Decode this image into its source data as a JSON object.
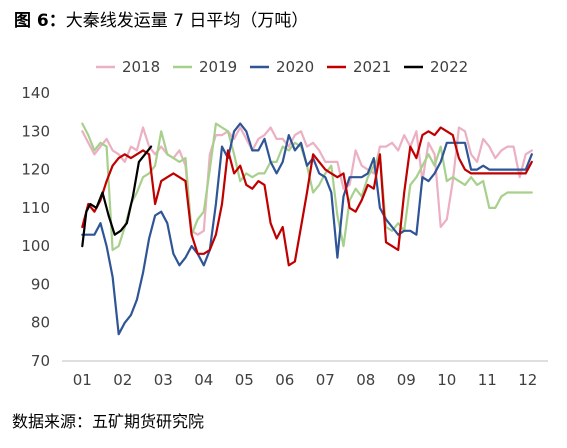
{
  "title": {
    "label": "图 6：",
    "text": "大秦线发运量 7 日平均（万吨）"
  },
  "source": "数据来源：五矿期货研究院",
  "chart_data": {
    "type": "line",
    "x_tick_labels": [
      "01",
      "02",
      "03",
      "04",
      "05",
      "06",
      "07",
      "08",
      "09",
      "10",
      "11",
      "12"
    ],
    "ylim": [
      70,
      140
    ],
    "y_ticks": [
      70,
      80,
      90,
      100,
      110,
      120,
      130,
      140
    ],
    "grid": false,
    "legend_position": "top",
    "series": [
      {
        "name": "2018",
        "color": "#ebb0c2",
        "x": [
          1.0,
          1.15,
          1.3,
          1.45,
          1.6,
          1.75,
          1.9,
          2.05,
          2.2,
          2.35,
          2.5,
          2.65,
          2.8,
          2.95,
          3.1,
          3.25,
          3.4,
          3.55,
          3.7,
          3.85,
          4.0,
          4.15,
          4.3,
          4.45,
          4.6,
          4.75,
          4.9,
          5.05,
          5.2,
          5.35,
          5.5,
          5.65,
          5.8,
          5.95,
          6.1,
          6.25,
          6.4,
          6.55,
          6.7,
          6.85,
          7.0,
          7.15,
          7.3,
          7.45,
          7.6,
          7.75,
          7.9,
          8.05,
          8.2,
          8.35,
          8.5,
          8.65,
          8.8,
          8.95,
          9.1,
          9.25,
          9.4,
          9.55,
          9.7,
          9.85,
          10.0,
          10.15,
          10.3,
          10.45,
          10.6,
          10.75,
          10.9,
          11.05,
          11.2,
          11.35,
          11.5,
          11.65,
          11.8,
          11.95,
          12.1
        ],
        "values": [
          130,
          127,
          124,
          126,
          128,
          125,
          124,
          122,
          126,
          125,
          131,
          126,
          124,
          126,
          124,
          123,
          125,
          121,
          104,
          103,
          104,
          124,
          129,
          129,
          130,
          128,
          131,
          128,
          125,
          128,
          129,
          131,
          128,
          128,
          126,
          129,
          130,
          126,
          127,
          125,
          122,
          122,
          122,
          115,
          116,
          125,
          121,
          120,
          119,
          126,
          126,
          127,
          125,
          129,
          126,
          130,
          117,
          127,
          124,
          105,
          107,
          117,
          131,
          130,
          124,
          122,
          128,
          126,
          123,
          125,
          126,
          126,
          118,
          124,
          125
        ]
      },
      {
        "name": "2019",
        "color": "#a8d08d",
        "x": [
          1.0,
          1.15,
          1.3,
          1.45,
          1.6,
          1.75,
          1.9,
          2.05,
          2.2,
          2.35,
          2.5,
          2.65,
          2.8,
          2.95,
          3.1,
          3.25,
          3.4,
          3.55,
          3.7,
          3.85,
          4.0,
          4.15,
          4.3,
          4.45,
          4.6,
          4.75,
          4.9,
          5.05,
          5.2,
          5.35,
          5.5,
          5.65,
          5.8,
          5.95,
          6.1,
          6.25,
          6.4,
          6.55,
          6.7,
          6.85,
          7.0,
          7.15,
          7.3,
          7.45,
          7.6,
          7.75,
          7.9,
          8.05,
          8.2,
          8.35,
          8.5,
          8.65,
          8.8,
          8.95,
          9.1,
          9.25,
          9.4,
          9.55,
          9.7,
          9.85,
          10.0,
          10.15,
          10.3,
          10.45,
          10.6,
          10.75,
          10.9,
          11.05,
          11.2,
          11.35,
          11.5,
          11.65,
          11.8,
          11.95,
          12.1
        ],
        "values": [
          132,
          129,
          125,
          127,
          126,
          99,
          100,
          105,
          111,
          114,
          118,
          119,
          121,
          130,
          124,
          123,
          122,
          123,
          103,
          107,
          109,
          120,
          132,
          131,
          130,
          124,
          117,
          119,
          118,
          119,
          119,
          122,
          122,
          126,
          125,
          127,
          126,
          121,
          114,
          116,
          119,
          121,
          108,
          100,
          112,
          115,
          113,
          118,
          121,
          124,
          105,
          104,
          106,
          104,
          116,
          118,
          121,
          124,
          121,
          126,
          117,
          118,
          117,
          116,
          118,
          116,
          117,
          110,
          110,
          113,
          114,
          114,
          114,
          114,
          114
        ]
      },
      {
        "name": "2020",
        "color": "#2f5597",
        "x": [
          1.0,
          1.15,
          1.3,
          1.45,
          1.6,
          1.75,
          1.9,
          2.05,
          2.2,
          2.35,
          2.5,
          2.65,
          2.8,
          2.95,
          3.1,
          3.25,
          3.4,
          3.55,
          3.7,
          3.85,
          4.0,
          4.15,
          4.3,
          4.45,
          4.6,
          4.75,
          4.9,
          5.05,
          5.2,
          5.35,
          5.5,
          5.65,
          5.8,
          5.95,
          6.1,
          6.25,
          6.4,
          6.55,
          6.7,
          6.85,
          7.0,
          7.15,
          7.3,
          7.45,
          7.6,
          7.75,
          7.9,
          8.05,
          8.2,
          8.35,
          8.5,
          8.65,
          8.8,
          8.95,
          9.1,
          9.25,
          9.4,
          9.55,
          9.7,
          9.85,
          10.0,
          10.15,
          10.3,
          10.45,
          10.6,
          10.75,
          10.9,
          11.05,
          11.2,
          11.35,
          11.5,
          11.65,
          11.8,
          11.95,
          12.1
        ],
        "values": [
          103,
          103,
          103,
          106,
          100,
          92,
          77,
          80,
          82,
          86,
          93,
          102,
          108,
          109,
          106,
          98,
          95,
          97,
          100,
          98,
          95,
          99,
          111,
          126,
          123,
          130,
          132,
          130,
          125,
          125,
          128,
          122,
          119,
          122,
          129,
          125,
          127,
          121,
          123,
          119,
          118,
          114,
          97,
          113,
          118,
          118,
          118,
          119,
          123,
          110,
          107,
          105,
          103,
          104,
          104,
          103,
          118,
          117,
          119,
          122,
          127,
          127,
          127,
          127,
          120,
          120,
          121,
          120,
          120,
          120,
          120,
          120,
          120,
          120,
          124
        ]
      },
      {
        "name": "2021",
        "color": "#c00000",
        "x": [
          1.0,
          1.15,
          1.3,
          1.45,
          1.6,
          1.75,
          1.9,
          2.05,
          2.2,
          2.35,
          2.5,
          2.65,
          2.8,
          2.95,
          3.1,
          3.25,
          3.4,
          3.55,
          3.7,
          3.85,
          4.0,
          4.15,
          4.3,
          4.45,
          4.6,
          4.75,
          4.9,
          5.05,
          5.2,
          5.35,
          5.5,
          5.65,
          5.8,
          5.95,
          6.1,
          6.25,
          6.4,
          6.55,
          6.7,
          6.85,
          7.0,
          7.15,
          7.3,
          7.45,
          7.6,
          7.75,
          7.9,
          8.05,
          8.2,
          8.35,
          8.5,
          8.65,
          8.8,
          8.95,
          9.1,
          9.25,
          9.4,
          9.55,
          9.7,
          9.85,
          10.0,
          10.15,
          10.3,
          10.45,
          10.6,
          10.75,
          10.9,
          11.05,
          11.2,
          11.35,
          11.5,
          11.65,
          11.8,
          11.95,
          12.1
        ],
        "values": [
          105,
          111,
          109,
          112,
          117,
          121,
          123,
          124,
          123,
          124,
          125,
          124,
          111,
          117,
          118,
          119,
          118,
          117,
          103,
          98,
          98,
          99,
          103,
          111,
          125,
          119,
          121,
          116,
          115,
          117,
          116,
          106,
          102,
          105,
          95,
          96,
          105,
          114,
          124,
          122,
          120,
          119,
          118,
          119,
          110,
          109,
          112,
          116,
          115,
          124,
          101,
          100,
          99,
          114,
          126,
          123,
          129,
          130,
          129,
          131,
          130,
          129,
          123,
          120,
          119,
          119,
          119,
          119,
          119,
          119,
          119,
          119,
          119,
          119,
          122
        ]
      },
      {
        "name": "2022",
        "color": "#000000",
        "x": [
          1.0,
          1.1,
          1.2,
          1.35,
          1.5,
          1.65,
          1.8,
          1.95,
          2.1,
          2.25,
          2.4,
          2.55,
          2.7
        ],
        "values": [
          100,
          109,
          111,
          110,
          114,
          108,
          103,
          104,
          106,
          113,
          122,
          124,
          126
        ]
      }
    ]
  }
}
